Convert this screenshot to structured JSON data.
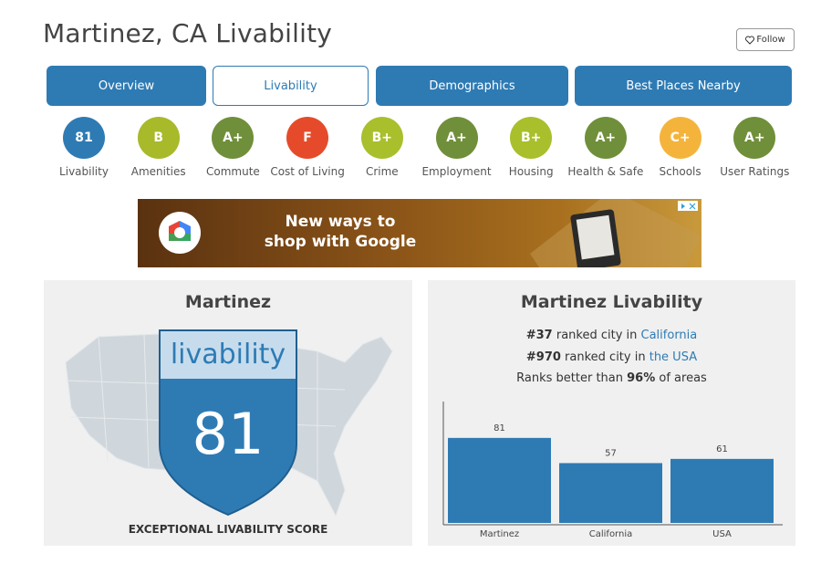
{
  "header": {
    "title": "Martinez, CA Livability",
    "follow": "Follow"
  },
  "tabs": [
    "Overview",
    "Livability",
    "Demographics",
    "Best Places Nearby"
  ],
  "grades": [
    {
      "grade": 81,
      "label": "Livability",
      "color": "#2e7bb4"
    },
    {
      "grade": "B",
      "label": "Amenities",
      "color": "#a8b92a"
    },
    {
      "grade": "A+",
      "label": "Commute",
      "color": "#6f8f3a"
    },
    {
      "grade": "F",
      "label": "Cost of Living",
      "color": "#e54b2a"
    },
    {
      "grade": "B+",
      "label": "Crime",
      "color": "#a9bf2c"
    },
    {
      "grade": "A+",
      "label": "Employment",
      "color": "#6f8f3a"
    },
    {
      "grade": "B+",
      "label": "Housing",
      "color": "#a9bf2c"
    },
    {
      "grade": "A+",
      "label": "Health & Safe",
      "color": "#6f8f3a"
    },
    {
      "grade": "C+",
      "label": "Schools",
      "color": "#f4b43c"
    },
    {
      "grade": "A+",
      "label": "User Ratings",
      "color": "#6f8f3a"
    }
  ],
  "ad": {
    "lines": [
      "New ways to",
      "shop with Google"
    ]
  },
  "score_card": {
    "title": "Martinez",
    "badge_word": "livability",
    "score": 81,
    "caption": "EXCEPTIONAL LIVABILITY SCORE"
  },
  "rank_card": {
    "title": "Martinez Livability",
    "lines": [
      [
        "#37",
        " ranked city in ",
        "California"
      ],
      [
        "#970",
        " ranked city in ",
        "the USA"
      ],
      [
        "Ranks better than ",
        "96%",
        " of areas"
      ]
    ]
  },
  "chart_data": {
    "type": "bar",
    "categories": [
      "Martinez",
      "California",
      "USA"
    ],
    "values": [
      81,
      57,
      61
    ],
    "color": "#2e7bb4"
  }
}
